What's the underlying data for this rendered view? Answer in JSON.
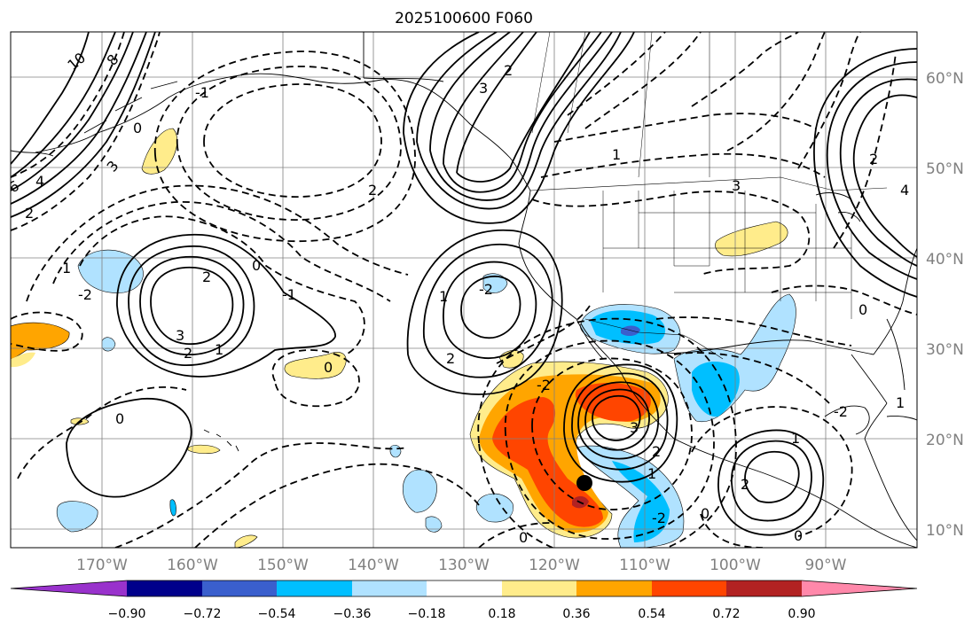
{
  "title": "2025100600 F060",
  "colors": {
    "background": "#ffffff",
    "frame": "#000000",
    "grid": "#808080",
    "coast": "#000000",
    "contour": "#000000",
    "tick_label": "#808080"
  },
  "longitude_labels": [
    "170°W",
    "160°W",
    "150°W",
    "140°W",
    "130°W",
    "120°W",
    "110°W",
    "100°W",
    "90°W"
  ],
  "latitude_labels": [
    "10°N",
    "20°N",
    "30°N",
    "40°N",
    "50°N",
    "60°N"
  ],
  "colorbar": {
    "colors": [
      "#9932cc",
      "#00008b",
      "#3a5fcd",
      "#00bfff",
      "#b0e2ff",
      "#ffffff",
      "#ffec8b",
      "#ffa500",
      "#ff4500",
      "#b22222",
      "#ff88aa"
    ],
    "tick_labels": [
      "−0.90",
      "−0.72",
      "−0.54",
      "−0.36",
      "−0.18",
      "0.18",
      "0.36",
      "0.54",
      "0.72",
      "0.90"
    ]
  },
  "contour_labels": [
    "10",
    "8",
    "6",
    "4",
    "3",
    "2",
    "1",
    "0",
    "-1",
    "-2",
    "2",
    "3",
    "2",
    "1",
    "0",
    "-1",
    "-2",
    "2",
    "2",
    "1",
    "0",
    "-2",
    "3",
    "2",
    "1",
    "3",
    "2",
    "1",
    "0",
    "-2",
    "1",
    "2",
    "0",
    "-2",
    "0",
    "3",
    "4",
    "2",
    "1",
    "0"
  ],
  "storm_marker": "tropical cyclone position"
}
